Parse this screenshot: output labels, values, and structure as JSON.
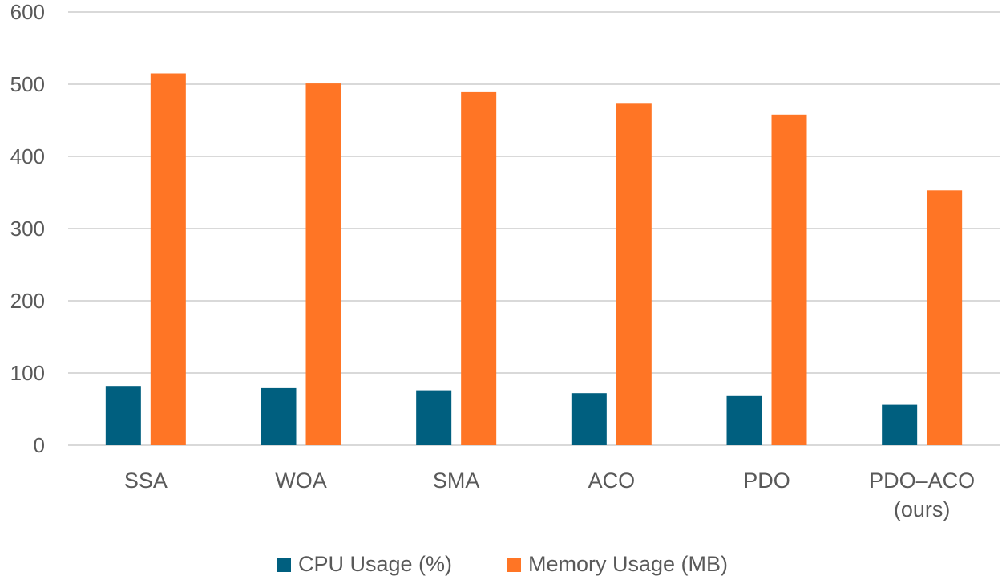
{
  "chart_data": {
    "type": "bar",
    "categories": [
      "SSA",
      "WOA",
      "SMA",
      "ACO",
      "PDO",
      "PDO–ACO (ours)"
    ],
    "category_lines": [
      [
        "SSA"
      ],
      [
        "WOA"
      ],
      [
        "SMA"
      ],
      [
        "ACO"
      ],
      [
        "PDO"
      ],
      [
        "PDO–ACO",
        "(ours)"
      ]
    ],
    "series": [
      {
        "name": "CPU Usage (%)",
        "color": "#005f7f",
        "values": [
          82,
          79,
          76,
          72,
          68,
          56
        ]
      },
      {
        "name": "Memory Usage (MB)",
        "color": "#ff7525",
        "values": [
          515,
          501,
          489,
          473,
          458,
          353
        ]
      }
    ],
    "yticks": [
      "0",
      "100",
      "200",
      "300",
      "400",
      "500",
      "600"
    ],
    "ylim": [
      0,
      600
    ],
    "grid": true,
    "legend_position": "bottom-center",
    "title": "",
    "xlabel": "",
    "ylabel": ""
  }
}
